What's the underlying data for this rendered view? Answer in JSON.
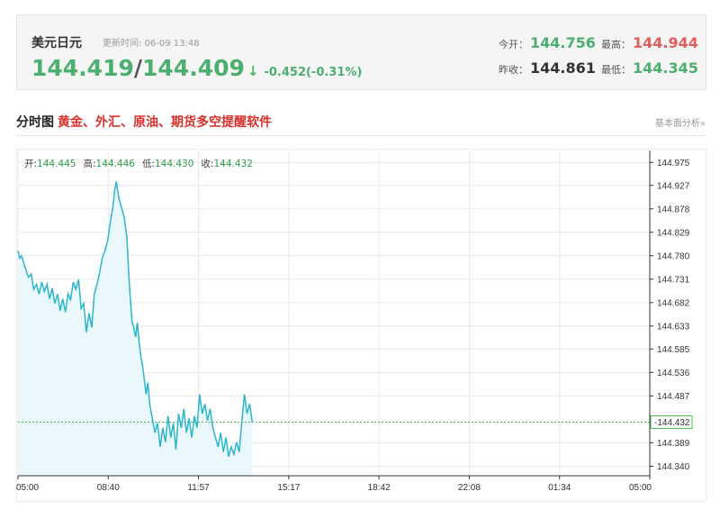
{
  "quote": {
    "name": "美元日元",
    "update_label": "更新时间: 06-09 13:48",
    "bid": "144.419",
    "separator": "/",
    "ask": "144.409",
    "arrow": "↓",
    "change": "-0.452(-0.31%)",
    "open_label": "今开：",
    "open": "144.756",
    "high_label": "最高：",
    "high": "144.944",
    "prev_close_label": "昨收：",
    "prev_close": "144.861",
    "low_label": "最低：",
    "low": "144.345"
  },
  "section": {
    "title": "分时图",
    "promo": "黄金、外汇、原油、期货多空提醒软件",
    "link": "基本面分析»"
  },
  "ohlc": {
    "open_label": "开:",
    "open": "144.445",
    "high_label": "高:",
    "high": "144.446",
    "low_label": "低:",
    "low": "144.430",
    "close_label": "收:",
    "close": "144.432"
  },
  "colors": {
    "up": "#e05d5d",
    "down": "#4caf70",
    "line": "#29b6cc",
    "fill": "#eaf8fb",
    "grid": "#e9e9e9",
    "last_line": "#4cbf4c"
  },
  "chart_data": {
    "type": "line",
    "x_ticks": [
      "05:00",
      "08:40",
      "11:57",
      "15:17",
      "18:42",
      "22:08",
      "01:34",
      "05:00"
    ],
    "y_ticks": [
      "144.975",
      "144.927",
      "144.878",
      "144.829",
      "144.780",
      "144.731",
      "144.682",
      "144.633",
      "144.585",
      "144.536",
      "144.487",
      "144.389",
      "144.340"
    ],
    "ylim": [
      144.32,
      145.0
    ],
    "x_range": [
      0,
      1440
    ],
    "last_price": "144.432",
    "last_value": 144.432,
    "series": [
      {
        "x": [
          0,
          4,
          8,
          12,
          18,
          24,
          30,
          36,
          42,
          48,
          54,
          60,
          66,
          72,
          78,
          84,
          90,
          96,
          102,
          108,
          114,
          120,
          126,
          132,
          138,
          144,
          150,
          156,
          162,
          168,
          174,
          180,
          186,
          192,
          198,
          204,
          208,
          212,
          216,
          220,
          224,
          230,
          236,
          242,
          248,
          252,
          256,
          260,
          264,
          268,
          272,
          276,
          280,
          284,
          288,
          292,
          296,
          300,
          306,
          312,
          318,
          324,
          330,
          336,
          342,
          348,
          354,
          360,
          366,
          372,
          378,
          384,
          390,
          396,
          402,
          408,
          414,
          420,
          426,
          432,
          438,
          444,
          450,
          456,
          462,
          468,
          474,
          480,
          486,
          492,
          498,
          504,
          510,
          516,
          522,
          528,
          534
        ],
        "values": [
          144.79,
          144.775,
          144.78,
          144.768,
          144.75,
          144.735,
          144.742,
          144.71,
          144.72,
          144.7,
          144.725,
          144.705,
          144.72,
          144.69,
          144.712,
          144.68,
          144.7,
          144.665,
          144.69,
          144.662,
          144.7,
          144.688,
          144.725,
          144.71,
          144.73,
          144.67,
          144.68,
          144.62,
          144.66,
          144.63,
          144.7,
          144.72,
          144.745,
          144.775,
          144.79,
          144.81,
          144.835,
          144.86,
          144.88,
          144.915,
          144.935,
          144.9,
          144.88,
          144.86,
          144.82,
          144.75,
          144.69,
          144.64,
          144.63,
          144.61,
          144.64,
          144.6,
          144.57,
          144.55,
          144.52,
          144.49,
          144.515,
          144.47,
          144.44,
          144.41,
          144.43,
          144.38,
          144.42,
          144.39,
          144.445,
          144.4,
          144.43,
          144.375,
          144.45,
          144.42,
          144.46,
          144.41,
          144.44,
          144.4,
          144.445,
          144.42,
          144.49,
          144.45,
          144.47,
          144.435,
          144.46,
          144.42,
          144.4,
          144.38,
          144.41,
          144.37,
          144.4,
          144.36,
          144.38,
          144.365,
          144.39,
          144.37,
          144.43,
          144.49,
          144.45,
          144.47,
          144.432
        ]
      }
    ]
  }
}
